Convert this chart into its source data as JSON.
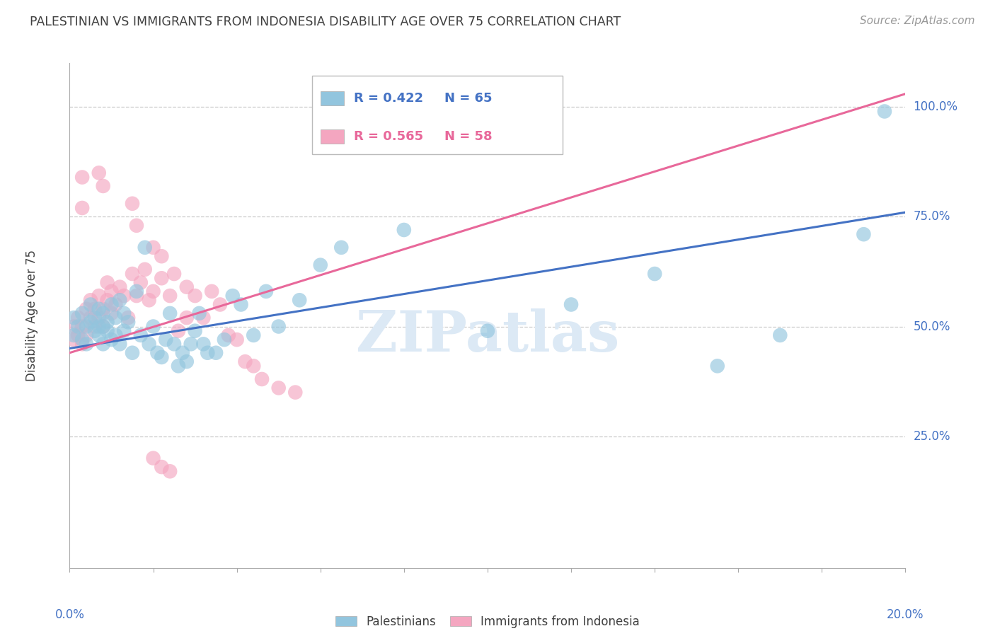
{
  "title": "PALESTINIAN VS IMMIGRANTS FROM INDONESIA DISABILITY AGE OVER 75 CORRELATION CHART",
  "source": "Source: ZipAtlas.com",
  "ylabel": "Disability Age Over 75",
  "legend1_label": "Palestinians",
  "legend2_label": "Immigrants from Indonesia",
  "r1_text": "R = 0.422",
  "n1_text": "N = 65",
  "r2_text": "R = 0.565",
  "n2_text": "N = 58",
  "blue_color": "#92c5de",
  "pink_color": "#f4a6c0",
  "blue_line_color": "#4472c4",
  "pink_line_color": "#e8689a",
  "axis_label_color": "#4472c4",
  "title_color": "#404040",
  "watermark_color": "#dce9f5",
  "ytick_labels": [
    "100.0%",
    "75.0%",
    "50.0%",
    "25.0%"
  ],
  "ytick_values": [
    1.0,
    0.75,
    0.5,
    0.25
  ],
  "xlim": [
    0.0,
    0.2
  ],
  "ylim": [
    -0.05,
    1.1
  ],
  "blue_line_y0": 0.45,
  "blue_line_y1": 0.76,
  "pink_line_y0": 0.44,
  "pink_line_y1": 1.03,
  "blue_x": [
    0.001,
    0.001,
    0.002,
    0.003,
    0.003,
    0.004,
    0.004,
    0.005,
    0.005,
    0.006,
    0.006,
    0.007,
    0.007,
    0.007,
    0.008,
    0.008,
    0.008,
    0.009,
    0.009,
    0.01,
    0.01,
    0.011,
    0.011,
    0.012,
    0.012,
    0.013,
    0.013,
    0.014,
    0.015,
    0.016,
    0.017,
    0.018,
    0.019,
    0.02,
    0.021,
    0.022,
    0.023,
    0.024,
    0.025,
    0.026,
    0.027,
    0.028,
    0.029,
    0.03,
    0.031,
    0.032,
    0.033,
    0.035,
    0.037,
    0.039,
    0.041,
    0.044,
    0.047,
    0.05,
    0.055,
    0.06,
    0.065,
    0.08,
    0.1,
    0.12,
    0.14,
    0.155,
    0.17,
    0.19,
    0.195
  ],
  "blue_y": [
    0.48,
    0.52,
    0.5,
    0.47,
    0.53,
    0.5,
    0.46,
    0.51,
    0.55,
    0.49,
    0.52,
    0.48,
    0.5,
    0.54,
    0.46,
    0.5,
    0.53,
    0.49,
    0.51,
    0.47,
    0.55,
    0.48,
    0.52,
    0.46,
    0.56,
    0.49,
    0.53,
    0.51,
    0.44,
    0.58,
    0.48,
    0.68,
    0.46,
    0.5,
    0.44,
    0.43,
    0.47,
    0.53,
    0.46,
    0.41,
    0.44,
    0.42,
    0.46,
    0.49,
    0.53,
    0.46,
    0.44,
    0.44,
    0.47,
    0.57,
    0.55,
    0.48,
    0.58,
    0.5,
    0.56,
    0.64,
    0.68,
    0.72,
    0.49,
    0.55,
    0.62,
    0.41,
    0.48,
    0.71,
    0.99
  ],
  "pink_x": [
    0.001,
    0.001,
    0.002,
    0.002,
    0.003,
    0.003,
    0.004,
    0.004,
    0.005,
    0.005,
    0.006,
    0.006,
    0.007,
    0.007,
    0.008,
    0.008,
    0.009,
    0.009,
    0.01,
    0.01,
    0.011,
    0.012,
    0.013,
    0.014,
    0.015,
    0.016,
    0.017,
    0.018,
    0.019,
    0.02,
    0.022,
    0.024,
    0.026,
    0.028,
    0.03,
    0.032,
    0.034,
    0.036,
    0.038,
    0.04,
    0.042,
    0.044,
    0.046,
    0.05,
    0.054,
    0.02,
    0.022,
    0.024,
    0.007,
    0.008,
    0.003,
    0.003,
    0.015,
    0.016,
    0.02,
    0.022,
    0.025,
    0.028
  ],
  "pink_y": [
    0.47,
    0.5,
    0.48,
    0.52,
    0.46,
    0.5,
    0.54,
    0.48,
    0.52,
    0.56,
    0.5,
    0.54,
    0.52,
    0.57,
    0.5,
    0.54,
    0.56,
    0.6,
    0.53,
    0.58,
    0.55,
    0.59,
    0.57,
    0.52,
    0.62,
    0.57,
    0.6,
    0.63,
    0.56,
    0.58,
    0.61,
    0.57,
    0.49,
    0.52,
    0.57,
    0.52,
    0.58,
    0.55,
    0.48,
    0.47,
    0.42,
    0.41,
    0.38,
    0.36,
    0.35,
    0.2,
    0.18,
    0.17,
    0.85,
    0.82,
    0.84,
    0.77,
    0.78,
    0.73,
    0.68,
    0.66,
    0.62,
    0.59
  ]
}
